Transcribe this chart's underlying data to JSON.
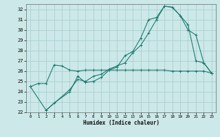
{
  "bg_color": "#cce8e8",
  "line_color": "#1a7a6e",
  "grid_color": "#aacfcf",
  "xlabel": "Humidex (Indice chaleur)",
  "ylim": [
    22,
    32.5
  ],
  "xlim": [
    -0.5,
    23.5
  ],
  "yticks": [
    22,
    23,
    24,
    25,
    26,
    27,
    28,
    29,
    30,
    31,
    32
  ],
  "xticks": [
    0,
    1,
    2,
    3,
    4,
    5,
    6,
    7,
    8,
    9,
    10,
    11,
    12,
    13,
    14,
    15,
    16,
    17,
    18,
    19,
    20,
    21,
    22,
    23
  ],
  "line1_x": [
    0,
    1,
    2,
    3,
    4,
    5,
    6,
    7,
    8,
    9,
    10,
    11,
    12,
    13,
    14,
    15,
    16,
    17,
    18,
    19,
    20,
    21,
    22,
    23
  ],
  "line1_y": [
    24.5,
    24.8,
    24.8,
    26.6,
    26.5,
    26.1,
    26.0,
    26.1,
    26.1,
    26.1,
    26.1,
    26.1,
    26.1,
    26.1,
    26.1,
    26.1,
    26.1,
    26.1,
    26.0,
    26.0,
    26.0,
    26.0,
    26.0,
    25.8
  ],
  "line2_x": [
    0,
    2,
    3,
    5,
    6,
    7,
    8,
    9,
    10,
    11,
    12,
    13,
    14,
    15,
    16,
    17,
    18,
    19,
    20,
    21,
    22,
    23
  ],
  "line2_y": [
    24.5,
    22.2,
    22.9,
    24.0,
    25.5,
    24.9,
    25.0,
    25.4,
    26.1,
    26.4,
    27.5,
    27.9,
    29.2,
    31.0,
    31.2,
    32.3,
    32.2,
    31.4,
    30.0,
    29.5,
    26.8,
    25.8
  ],
  "line3_x": [
    2,
    5,
    6,
    7,
    8,
    9,
    10,
    11,
    12,
    13,
    14,
    15,
    16,
    17,
    18,
    19,
    20,
    21,
    22,
    23
  ],
  "line3_y": [
    22.2,
    24.2,
    25.2,
    25.0,
    25.5,
    25.7,
    26.2,
    26.5,
    26.8,
    27.8,
    28.5,
    29.7,
    31.0,
    32.3,
    32.2,
    31.4,
    30.5,
    27.0,
    26.8,
    25.8
  ]
}
